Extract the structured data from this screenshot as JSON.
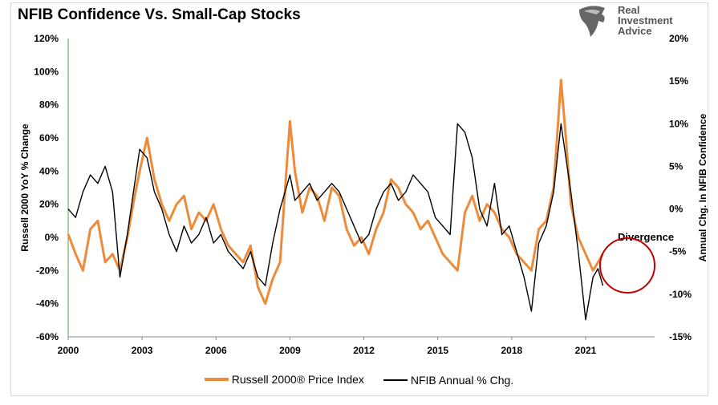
{
  "header": {
    "title": "NFIB Confidence Vs. Small-Cap Stocks"
  },
  "logo": {
    "line1": "Real",
    "line2": "Investment",
    "line3": "Advice",
    "icon": "eagle-icon"
  },
  "chart_data": {
    "type": "line",
    "title": "NFIB Confidence Vs. Small-Cap Stocks",
    "ylabel": "Russell 2000 YoY % Change",
    "y2label": "Annual Chg. In NFIB Confidence",
    "xlim": [
      2000,
      2023.8
    ],
    "ylim": [
      -60,
      120
    ],
    "y2lim": [
      -15,
      20
    ],
    "xticks": [
      "2000",
      "2003",
      "2006",
      "2009",
      "2012",
      "2015",
      "2018",
      "2021"
    ],
    "yticks": [
      "120%",
      "100%",
      "80%",
      "60%",
      "40%",
      "20%",
      "0%",
      "-20%",
      "-40%",
      "-60%"
    ],
    "y2ticks": [
      "20%",
      "15%",
      "10%",
      "5%",
      "0%",
      "-5%",
      "-10%",
      "-15%"
    ],
    "annotation": "Divergence",
    "legend_position": "bottom",
    "grid": false,
    "series": [
      {
        "name": "Russell 2000® Price Index",
        "axis": "left",
        "color": "#ed8b3a",
        "x": [
          2000.0,
          2000.3,
          2000.6,
          2000.9,
          2001.2,
          2001.5,
          2001.8,
          2002.1,
          2002.4,
          2002.7,
          2002.9,
          2003.2,
          2003.5,
          2003.8,
          2004.1,
          2004.4,
          2004.7,
          2005.0,
          2005.3,
          2005.6,
          2005.9,
          2006.2,
          2006.5,
          2006.8,
          2007.1,
          2007.4,
          2007.7,
          2008.0,
          2008.3,
          2008.6,
          2008.9,
          2009.0,
          2009.2,
          2009.5,
          2009.8,
          2010.1,
          2010.4,
          2010.7,
          2011.0,
          2011.3,
          2011.6,
          2011.9,
          2012.2,
          2012.5,
          2012.8,
          2013.1,
          2013.4,
          2013.7,
          2014.0,
          2014.3,
          2014.6,
          2014.9,
          2015.2,
          2015.5,
          2015.8,
          2016.1,
          2016.4,
          2016.7,
          2017.0,
          2017.3,
          2017.6,
          2017.9,
          2018.2,
          2018.5,
          2018.8,
          2019.1,
          2019.4,
          2019.7,
          2020.0,
          2020.2,
          2020.4,
          2020.7,
          2021.0,
          2021.3,
          2021.5,
          2021.7
        ],
        "values": [
          2,
          -10,
          -20,
          5,
          10,
          -15,
          -10,
          -20,
          0,
          25,
          40,
          60,
          35,
          20,
          10,
          20,
          25,
          5,
          15,
          10,
          20,
          5,
          -5,
          -10,
          -15,
          -5,
          -30,
          -40,
          -25,
          -15,
          50,
          70,
          40,
          15,
          30,
          25,
          10,
          30,
          25,
          5,
          -5,
          0,
          -10,
          5,
          15,
          35,
          30,
          20,
          15,
          5,
          10,
          0,
          -10,
          -15,
          -20,
          15,
          25,
          10,
          20,
          15,
          5,
          0,
          -10,
          -15,
          -20,
          5,
          10,
          30,
          95,
          60,
          20,
          0,
          -10,
          -20,
          -15,
          -10
        ]
      },
      {
        "name": "NFIB Annual % Chg.",
        "axis": "right",
        "color": "#000000",
        "x": [
          2000.0,
          2000.3,
          2000.6,
          2000.9,
          2001.2,
          2001.5,
          2001.8,
          2002.1,
          2002.4,
          2002.7,
          2002.9,
          2003.2,
          2003.5,
          2003.8,
          2004.1,
          2004.4,
          2004.7,
          2005.0,
          2005.3,
          2005.6,
          2005.9,
          2006.2,
          2006.5,
          2006.8,
          2007.1,
          2007.4,
          2007.7,
          2008.0,
          2008.3,
          2008.6,
          2008.9,
          2009.0,
          2009.2,
          2009.5,
          2009.8,
          2010.1,
          2010.4,
          2010.7,
          2011.0,
          2011.3,
          2011.6,
          2011.9,
          2012.2,
          2012.5,
          2012.8,
          2013.1,
          2013.4,
          2013.7,
          2014.0,
          2014.3,
          2014.6,
          2014.9,
          2015.2,
          2015.5,
          2015.8,
          2016.1,
          2016.4,
          2016.7,
          2017.0,
          2017.3,
          2017.6,
          2017.9,
          2018.2,
          2018.5,
          2018.8,
          2019.1,
          2019.4,
          2019.7,
          2020.0,
          2020.2,
          2020.4,
          2020.7,
          2021.0,
          2021.3,
          2021.5,
          2021.7
        ],
        "values": [
          0,
          -1,
          2,
          4,
          3,
          5,
          2,
          -8,
          -3,
          3,
          7,
          6,
          2,
          0,
          -3,
          -5,
          -2,
          -4,
          -3,
          -1,
          -4,
          -3,
          -5,
          -6,
          -7,
          -5,
          -8,
          -9,
          -4,
          0,
          3,
          4,
          1,
          2,
          3,
          1,
          2,
          3,
          2,
          0,
          -2,
          -4,
          -3,
          0,
          2,
          3,
          1,
          2,
          4,
          3,
          2,
          -1,
          -2,
          -3,
          10,
          9,
          6,
          0,
          -2,
          3,
          -3,
          -2,
          -5,
          -8,
          -12,
          -4,
          -2,
          2,
          10,
          6,
          2,
          -5,
          -13,
          -8,
          -7,
          -9
        ]
      }
    ]
  }
}
